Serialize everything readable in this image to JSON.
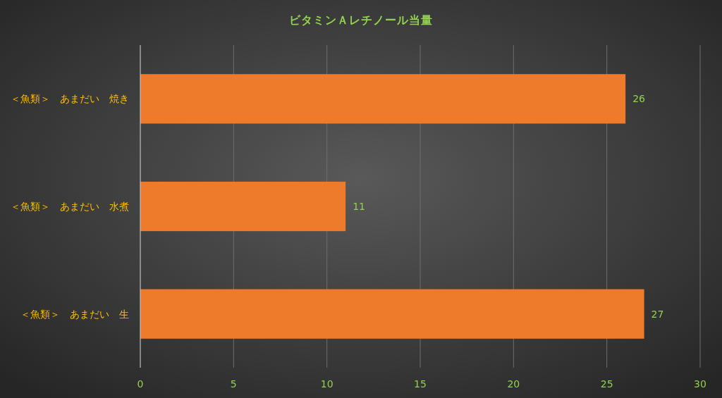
{
  "chart_data": {
    "type": "bar",
    "orientation": "horizontal",
    "title": "ビタミンＡレチノール当量",
    "categories": [
      "＜魚類＞　あまだい　焼き",
      "＜魚類＞　あまだい　水煮",
      "＜魚類＞　あまだい　生"
    ],
    "values": [
      26,
      11,
      27
    ],
    "color": "#ee7a2c",
    "xlim": [
      0,
      30
    ],
    "xticks": [
      0,
      5,
      10,
      15,
      20,
      25,
      30
    ],
    "grid": "x",
    "data_labels": true
  }
}
